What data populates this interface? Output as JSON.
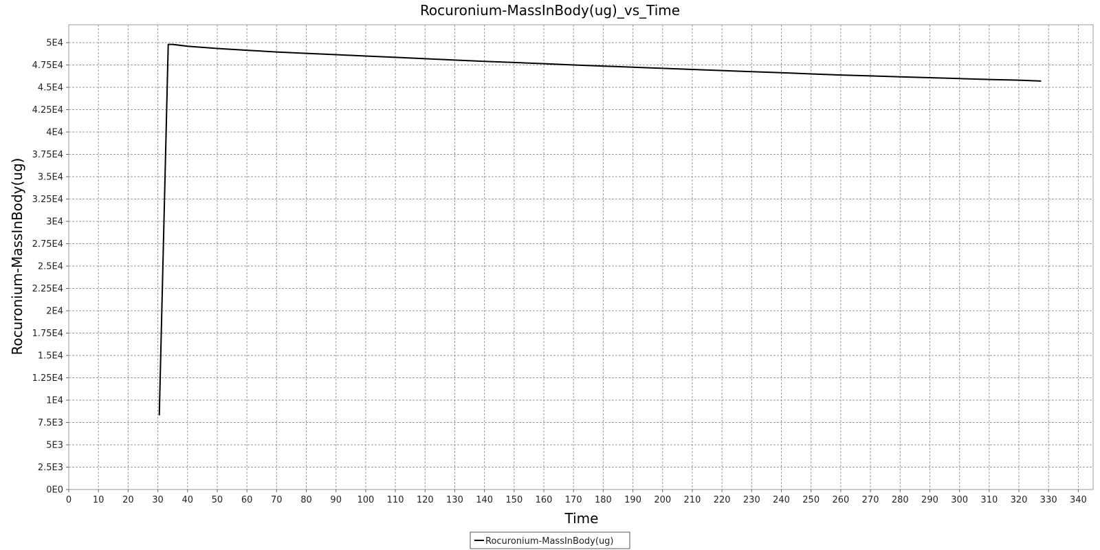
{
  "chart_data": {
    "type": "line",
    "title": "Rocuronium-MassInBody(ug)_vs_Time",
    "xlabel": "Time",
    "ylabel": "Rocuronium-MassInBody(ug)",
    "xlim": [
      0,
      345
    ],
    "ylim": [
      0,
      52000
    ],
    "x_ticks": [
      0,
      10,
      20,
      30,
      40,
      50,
      60,
      70,
      80,
      90,
      100,
      110,
      120,
      130,
      140,
      150,
      160,
      170,
      180,
      190,
      200,
      210,
      220,
      230,
      240,
      250,
      260,
      270,
      280,
      290,
      300,
      310,
      320,
      330,
      340
    ],
    "x_tick_labels": [
      "0",
      "10",
      "20",
      "30",
      "40",
      "50",
      "60",
      "70",
      "80",
      "90",
      "100",
      "110",
      "120",
      "130",
      "140",
      "150",
      "160",
      "170",
      "180",
      "190",
      "200",
      "210",
      "220",
      "230",
      "240",
      "250",
      "260",
      "270",
      "280",
      "290",
      "300",
      "310",
      "320",
      "330",
      "340"
    ],
    "y_ticks": [
      0,
      2500,
      5000,
      7500,
      10000,
      12500,
      15000,
      17500,
      20000,
      22500,
      25000,
      27500,
      30000,
      32500,
      35000,
      37500,
      40000,
      42500,
      45000,
      47500,
      50000
    ],
    "y_tick_labels": [
      "0E0",
      "2.5E3",
      "5E3",
      "7.5E3",
      "1E4",
      "1.25E4",
      "1.5E4",
      "1.75E4",
      "2E4",
      "2.25E4",
      "2.5E4",
      "2.75E4",
      "3E4",
      "3.25E4",
      "3.5E4",
      "3.75E4",
      "4E4",
      "4.25E4",
      "4.5E4",
      "4.75E4",
      "5E4"
    ],
    "grid": true,
    "legend_position": "bottom-center",
    "series": [
      {
        "name": "Rocuronium-MassInBody(ug)",
        "color": "#000000",
        "x": [
          30.5,
          33.5,
          35,
          40,
          50,
          60,
          70,
          80,
          90,
          100,
          110,
          120,
          130,
          140,
          150,
          160,
          170,
          180,
          190,
          200,
          210,
          220,
          230,
          240,
          250,
          260,
          270,
          280,
          290,
          300,
          310,
          320,
          327.5
        ],
        "y": [
          8300,
          49800,
          49800,
          49600,
          49350,
          49150,
          48950,
          48800,
          48650,
          48500,
          48350,
          48200,
          48050,
          47900,
          47780,
          47650,
          47500,
          47380,
          47250,
          47120,
          47000,
          46880,
          46750,
          46630,
          46500,
          46380,
          46280,
          46180,
          46080,
          45980,
          45880,
          45800,
          45700
        ]
      }
    ]
  },
  "legend": {
    "label": "Rocuronium-MassInBody(ug)"
  }
}
